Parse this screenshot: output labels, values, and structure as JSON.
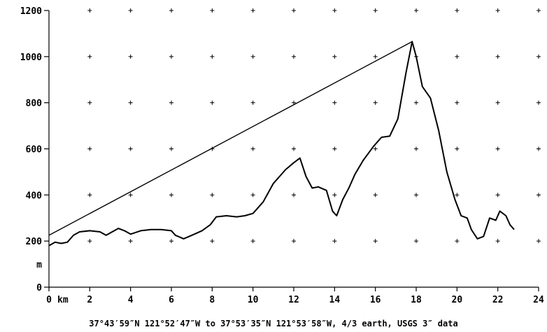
{
  "chart_data": {
    "type": "line",
    "title": "",
    "caption": "37°43′59″N 121°52′47″W to 37°53′35″N 121°53′58″W, 4/3 earth, USGS 3″ data",
    "xlabel": "",
    "ylabel": "",
    "x_unit_label": "km",
    "y_unit_label": "m",
    "xlim": [
      0,
      24
    ],
    "ylim": [
      0,
      1200
    ],
    "x_ticks": [
      0,
      2,
      4,
      6,
      8,
      10,
      12,
      14,
      16,
      18,
      20,
      22,
      24
    ],
    "y_ticks": [
      0,
      200,
      400,
      600,
      800,
      1000,
      1200
    ],
    "grid": "plus-markers",
    "line_color": "#000000",
    "series": [
      {
        "name": "",
        "x": [
          0,
          0.3,
          0.6,
          0.9,
          1.2,
          1.5,
          2,
          2.5,
          2.8,
          3.1,
          3.4,
          3.7,
          4,
          4.5,
          5,
          5.5,
          6,
          6.2,
          6.6,
          7,
          7.5,
          7.9,
          8.2,
          8.7,
          9.2,
          9.6,
          10,
          10.5,
          11,
          11.3,
          11.6,
          12,
          12.3,
          12.6,
          12.9,
          13.2,
          13.6,
          13.9,
          14.1,
          14.4,
          14.7,
          15,
          15.4,
          15.9,
          16.3,
          16.7,
          17.1,
          17.5,
          17.8,
          18,
          18.3,
          18.7,
          19.1,
          19.5,
          19.9,
          20.2,
          20.5,
          20.7,
          21,
          21.3,
          21.6,
          21.9,
          22.1,
          22.4,
          22.6,
          22.8
        ],
        "y": [
          180,
          195,
          190,
          195,
          225,
          240,
          245,
          240,
          225,
          240,
          255,
          245,
          230,
          245,
          250,
          250,
          245,
          225,
          210,
          225,
          245,
          270,
          305,
          310,
          305,
          310,
          320,
          370,
          450,
          480,
          510,
          540,
          560,
          480,
          430,
          435,
          420,
          330,
          310,
          380,
          430,
          490,
          550,
          610,
          650,
          655,
          730,
          930,
          1065,
          1000,
          870,
          820,
          680,
          500,
          380,
          310,
          300,
          250,
          210,
          220,
          300,
          290,
          330,
          310,
          270,
          250
        ]
      },
      {
        "name": "",
        "x": [
          0,
          17.8
        ],
        "y": [
          225,
          1065
        ]
      }
    ]
  }
}
